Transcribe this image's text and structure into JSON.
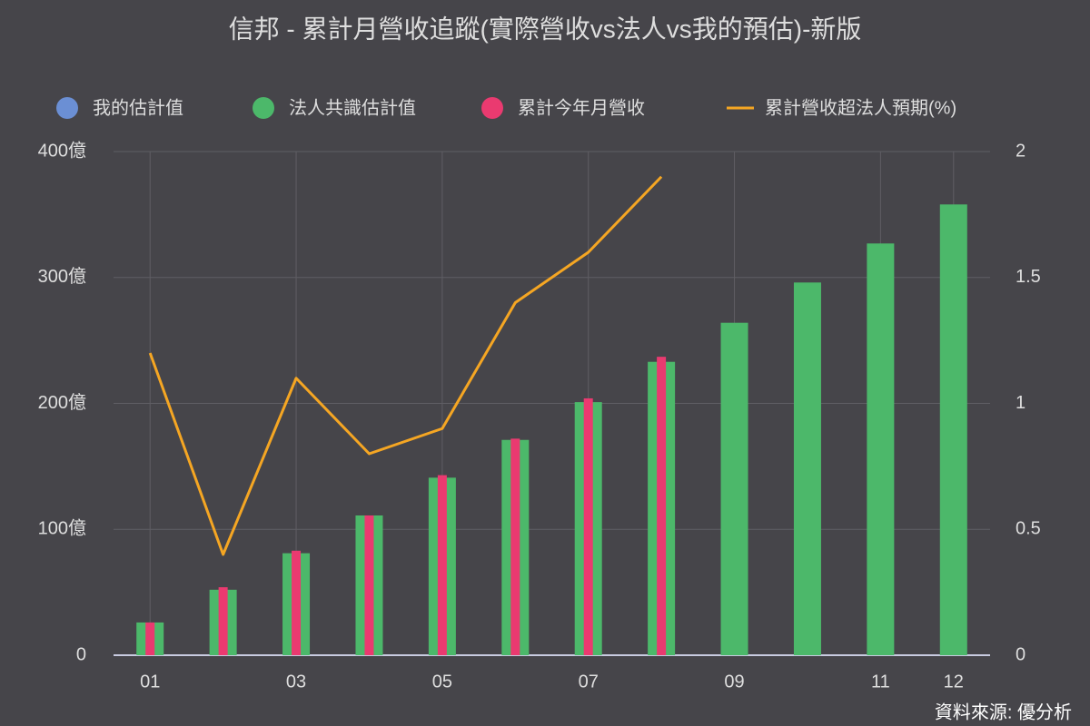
{
  "chart_data": {
    "type": "bar",
    "title": "信邦 - 累計月營收追蹤(實際營收vs法人vs我的預估)-新版",
    "source": "資料來源: 優分析",
    "categories": [
      "01",
      null,
      "03",
      null,
      "05",
      null,
      "07",
      null,
      "09",
      null,
      "11",
      "12"
    ],
    "series": [
      {
        "name": "我的估計值",
        "type": "bar",
        "color": "#6b8fd4",
        "values": [
          null,
          null,
          null,
          null,
          null,
          null,
          null,
          null,
          null,
          null,
          null,
          null
        ]
      },
      {
        "name": "法人共識估計值",
        "type": "bar",
        "color": "#4cb86a",
        "values": [
          26,
          52,
          81,
          111,
          141,
          171,
          201,
          233,
          264,
          296,
          327,
          358
        ]
      },
      {
        "name": "累計今年月營收",
        "type": "bar",
        "color": "#ea3a70",
        "values": [
          26,
          54,
          83,
          111,
          143,
          172,
          204,
          237,
          null,
          null,
          null,
          null
        ]
      },
      {
        "name": "累計營收超法人預期(%)",
        "type": "line",
        "axis": "y2",
        "color": "#f5a623",
        "values": [
          1.2,
          0.4,
          1.1,
          0.8,
          0.9,
          1.4,
          1.6,
          1.9,
          null,
          null,
          null,
          null
        ]
      }
    ],
    "ylim": [
      0,
      400
    ],
    "yticks": [
      0,
      {
        "value": 100,
        "label": "100億"
      },
      {
        "value": 200,
        "label": "200億"
      },
      {
        "value": 300,
        "label": "300億"
      },
      {
        "value": 400,
        "label": "400億"
      }
    ],
    "y2lim": [
      0,
      2
    ],
    "y2ticks": [
      0,
      0.5,
      1,
      1.5,
      2
    ],
    "grid": true
  }
}
